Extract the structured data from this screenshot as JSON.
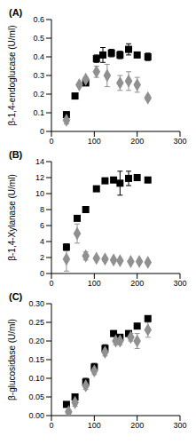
{
  "chart_data": [
    {
      "type": "scatter",
      "title": "(A)",
      "y_label": "β-1,4-endoglucase (U/ml)",
      "xlim": [
        0,
        300
      ],
      "xticks": [
        0,
        100,
        200,
        300
      ],
      "ylim": [
        0,
        0.6
      ],
      "yticks": [
        0,
        0.1,
        0.2,
        0.3,
        0.4,
        0.5,
        0.6
      ],
      "series": [
        {
          "color": "#000000",
          "marker": "square",
          "x": [
            35,
            55,
            80,
            105,
            120,
            140,
            160,
            180,
            200,
            225
          ],
          "values": [
            0.09,
            0.19,
            0.26,
            0.39,
            0.41,
            0.42,
            0.41,
            0.44,
            0.41,
            0.4
          ],
          "errors": [
            0.01,
            0.01,
            0.01,
            0.02,
            0.04,
            0.02,
            0.02,
            0.03,
            0.01,
            0.02
          ]
        },
        {
          "color": "#909090",
          "marker": "diamond",
          "x": [
            35,
            65,
            80,
            105,
            130,
            160,
            180,
            200,
            225
          ],
          "values": [
            0.06,
            0.25,
            0.28,
            0.32,
            0.3,
            0.26,
            0.27,
            0.25,
            0.18
          ],
          "errors": [
            0.02,
            0.01,
            0.01,
            0.03,
            0.06,
            0.04,
            0.05,
            0.04,
            0.01
          ]
        }
      ]
    },
    {
      "type": "scatter",
      "title": "(B)",
      "y_label": "β-1,4-Xylanase (U/ml)",
      "xlim": [
        0,
        300
      ],
      "xticks": [
        0,
        100,
        200,
        300
      ],
      "ylim": [
        0,
        14
      ],
      "yticks": [
        0,
        2,
        4,
        6,
        8,
        10,
        12,
        14
      ],
      "series": [
        {
          "color": "#000000",
          "marker": "square",
          "x": [
            35,
            60,
            80,
            105,
            125,
            145,
            160,
            180,
            200,
            225
          ],
          "values": [
            3.3,
            6.9,
            8.0,
            10.6,
            11.6,
            11.7,
            11.3,
            11.9,
            12.0,
            11.7
          ],
          "errors": [
            0.4,
            0.2,
            0.2,
            0.2,
            0.3,
            0.2,
            1.5,
            0.9,
            0.3,
            0.2
          ]
        },
        {
          "color": "#909090",
          "marker": "diamond",
          "x": [
            35,
            60,
            80,
            105,
            125,
            145,
            160,
            185,
            205,
            225
          ],
          "values": [
            1.8,
            5.0,
            2.2,
            1.9,
            1.8,
            1.7,
            1.6,
            1.5,
            1.5,
            1.4
          ],
          "errors": [
            1.5,
            1.2,
            0.5,
            0.2,
            0.2,
            0.1,
            0.1,
            0.1,
            0.1,
            0.1
          ]
        }
      ]
    },
    {
      "type": "scatter",
      "title": "(C)",
      "y_label": "β-glucosidase (U/ml)",
      "xlim": [
        0,
        300
      ],
      "xticks": [
        0,
        100,
        200,
        300
      ],
      "ylim": [
        0,
        0.3
      ],
      "yticks": [
        {
          "value": 0,
          "label": "0.00"
        },
        {
          "value": 0.05,
          "label": "0.05"
        },
        {
          "value": 0.1,
          "label": "0.10"
        },
        {
          "value": 0.15,
          "label": "0.15"
        },
        {
          "value": 0.2,
          "label": "0.20"
        },
        {
          "value": 0.25,
          "label": "0.25"
        },
        {
          "value": 0.3,
          "label": "0.30"
        }
      ],
      "series": [
        {
          "color": "#000000",
          "marker": "square",
          "x": [
            35,
            55,
            80,
            100,
            125,
            145,
            160,
            180,
            200,
            225
          ],
          "values": [
            0.03,
            0.05,
            0.09,
            0.13,
            0.18,
            0.22,
            0.21,
            0.22,
            0.24,
            0.26
          ],
          "errors": [
            0.005,
            0.005,
            0.01,
            0.01,
            0.01,
            0.005,
            0.005,
            0.005,
            0.005,
            0.005
          ]
        },
        {
          "color": "#909090",
          "marker": "diamond",
          "x": [
            40,
            55,
            80,
            100,
            125,
            150,
            160,
            185,
            200,
            225
          ],
          "values": [
            0.01,
            0.035,
            0.08,
            0.12,
            0.17,
            0.2,
            0.2,
            0.21,
            0.2,
            0.23
          ],
          "errors": [
            0.005,
            0.01,
            0.01,
            0.01,
            0.01,
            0.01,
            0.01,
            0.01,
            0.02,
            0.02
          ]
        }
      ]
    }
  ]
}
